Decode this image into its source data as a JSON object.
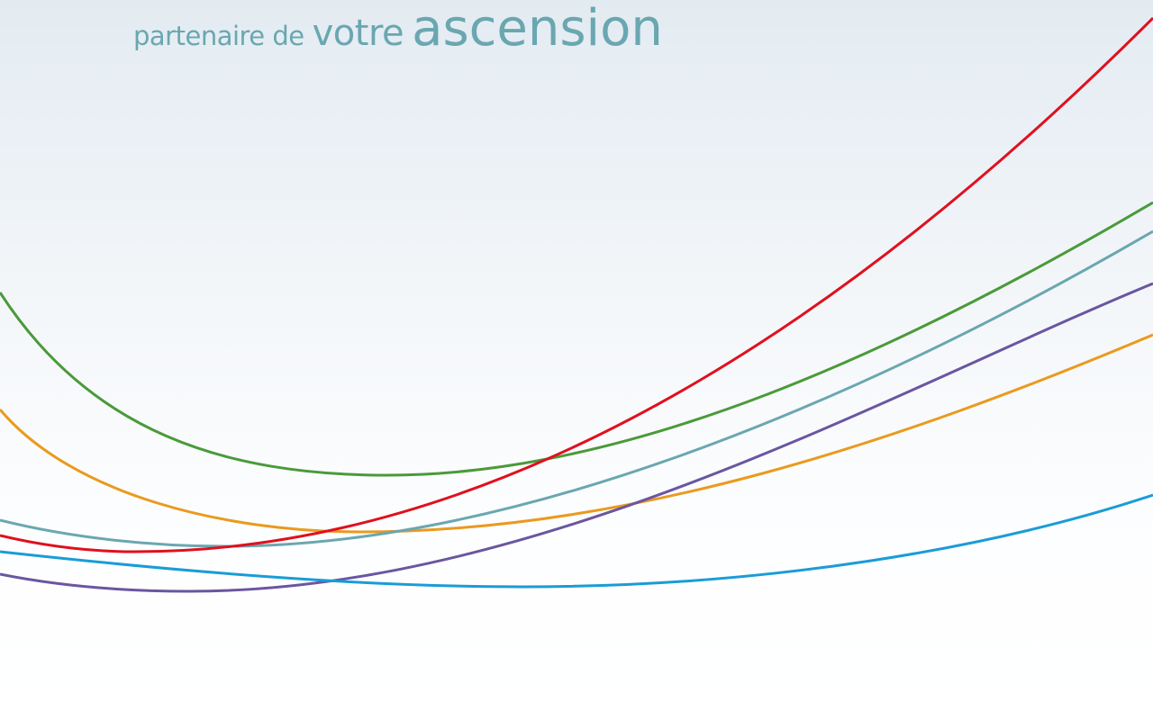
{
  "tagline": {
    "part1": "partenaire de",
    "part2": "votre",
    "part3": "ascension"
  }
}
